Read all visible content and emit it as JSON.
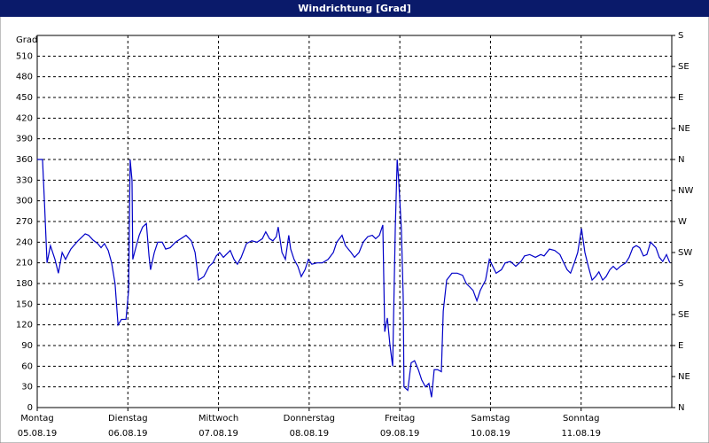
{
  "chart_data": {
    "type": "line",
    "title": "Windrichtung [Grad]",
    "y_label": "Grad",
    "x": [
      0,
      1.4,
      1.9,
      2.6,
      3.5,
      4.7,
      5.6,
      6.6,
      7.5,
      8.9,
      10.8,
      12.7,
      13.6,
      14.8,
      16,
      16.9,
      17.8,
      18.8,
      19.7,
      20.6,
      21.4,
      22.3,
      23.5,
      24.2,
      24.6,
      25.1,
      25.3,
      26,
      27,
      27.9,
      28.9,
      29.6,
      30,
      31,
      31.9,
      33.1,
      34,
      35.2,
      36.6,
      38,
      39.4,
      40.8,
      41.8,
      42.7,
      44.1,
      45.5,
      46.5,
      47.4,
      48.3,
      49.3,
      50.2,
      51.1,
      52.1,
      53,
      54,
      55.4,
      56.8,
      58.2,
      59.6,
      60.5,
      61.5,
      62.4,
      63.3,
      63.8,
      64.8,
      65.7,
      66.6,
      67.1,
      68,
      69,
      69.9,
      70.9,
      71.8,
      72.7,
      74.1,
      75.5,
      77,
      78.4,
      79.3,
      80.7,
      81.6,
      83.1,
      84,
      85.2,
      86.3,
      87.5,
      88.7,
      89.6,
      90.6,
      91.5,
      92,
      92.7,
      93.4,
      94.1,
      94.8,
      95.3,
      95.7,
      96.4,
      96.9,
      97.1,
      98.1,
      99,
      99.9,
      100.9,
      101.8,
      102.8,
      103.7,
      104.4,
      105.1,
      106,
      107,
      107.5,
      108.4,
      109.8,
      111.2,
      112.6,
      113.6,
      114.5,
      115.4,
      116.4,
      117.3,
      118.7,
      119.7,
      120.6,
      121.5,
      122.9,
      123.9,
      125.3,
      126.7,
      128.1,
      129,
      130.4,
      131.9,
      133.3,
      134.2,
      135.6,
      137,
      138.4,
      139.4,
      140.3,
      141.2,
      142.2,
      143.1,
      144.1,
      145,
      145.9,
      146.9,
      147.8,
      148.7,
      149.7,
      150.6,
      151.6,
      152.5,
      153.4,
      154.4,
      155.8,
      156.7,
      157.7,
      158.6,
      159.5,
      160.5,
      161.4,
      162.4,
      163.8,
      164.7,
      165.6,
      166.6,
      167.5
    ],
    "series": [
      {
        "name": "Windrichtung",
        "color": "#0000c8",
        "values": [
          360,
          360,
          300,
          210,
          235,
          215,
          195,
          225,
          215,
          230,
          242,
          252,
          250,
          243,
          238,
          232,
          238,
          228,
          210,
          180,
          120,
          128,
          128,
          170,
          360,
          330,
          215,
          230,
          250,
          262,
          267,
          220,
          200,
          225,
          240,
          240,
          230,
          232,
          240,
          245,
          250,
          242,
          225,
          185,
          190,
          205,
          210,
          220,
          225,
          218,
          223,
          228,
          215,
          208,
          218,
          238,
          242,
          240,
          245,
          255,
          245,
          242,
          248,
          262,
          225,
          215,
          250,
          230,
          215,
          205,
          190,
          200,
          215,
          208,
          210,
          210,
          215,
          225,
          240,
          250,
          235,
          225,
          218,
          225,
          240,
          248,
          250,
          245,
          250,
          265,
          110,
          130,
          90,
          60,
          260,
          360,
          330,
          260,
          160,
          30,
          25,
          65,
          68,
          55,
          40,
          30,
          35,
          15,
          55,
          55,
          52,
          140,
          185,
          195,
          195,
          192,
          180,
          175,
          170,
          155,
          170,
          185,
          215,
          205,
          195,
          200,
          210,
          212,
          205,
          212,
          220,
          222,
          218,
          222,
          220,
          230,
          228,
          222,
          210,
          200,
          195,
          210,
          225,
          260,
          225,
          205,
          185,
          190,
          197,
          185,
          190,
          200,
          205,
          200,
          205,
          210,
          218,
          232,
          235,
          232,
          220,
          222,
          240,
          232,
          218,
          212,
          222,
          210
        ]
      }
    ],
    "xlim": [
      0,
      168
    ],
    "xticks": [
      {
        "value": 0,
        "label": "Montag"
      },
      {
        "value": 24,
        "label": "Dienstag"
      },
      {
        "value": 48,
        "label": "Mittwoch"
      },
      {
        "value": 72,
        "label": "Donnerstag"
      },
      {
        "value": 96,
        "label": "Freitag"
      },
      {
        "value": 120,
        "label": "Samstag"
      },
      {
        "value": 144,
        "label": "Sonntag"
      }
    ],
    "xtick_dates": [
      "05.08.19",
      "06.08.19",
      "07.08.19",
      "08.08.19",
      "09.08.19",
      "10.08.19",
      "11.08.19"
    ],
    "ylim": [
      0,
      540
    ],
    "yticks": [
      0,
      30,
      60,
      90,
      120,
      150,
      180,
      210,
      240,
      270,
      300,
      330,
      360,
      390,
      420,
      450,
      480,
      510
    ],
    "y2lim": [
      0,
      540
    ],
    "y2ticks": [
      {
        "value": 0,
        "label": "N"
      },
      {
        "value": 45,
        "label": "NE"
      },
      {
        "value": 90,
        "label": "E"
      },
      {
        "value": 135,
        "label": "SE"
      },
      {
        "value": 180,
        "label": "S"
      },
      {
        "value": 225,
        "label": "SW"
      },
      {
        "value": 270,
        "label": "W"
      },
      {
        "value": 315,
        "label": "NW"
      },
      {
        "value": 360,
        "label": "N"
      },
      {
        "value": 405,
        "label": "NE"
      },
      {
        "value": 450,
        "label": "E"
      },
      {
        "value": 495,
        "label": "SE"
      },
      {
        "value": 540,
        "label": "S"
      }
    ],
    "grid": true
  }
}
